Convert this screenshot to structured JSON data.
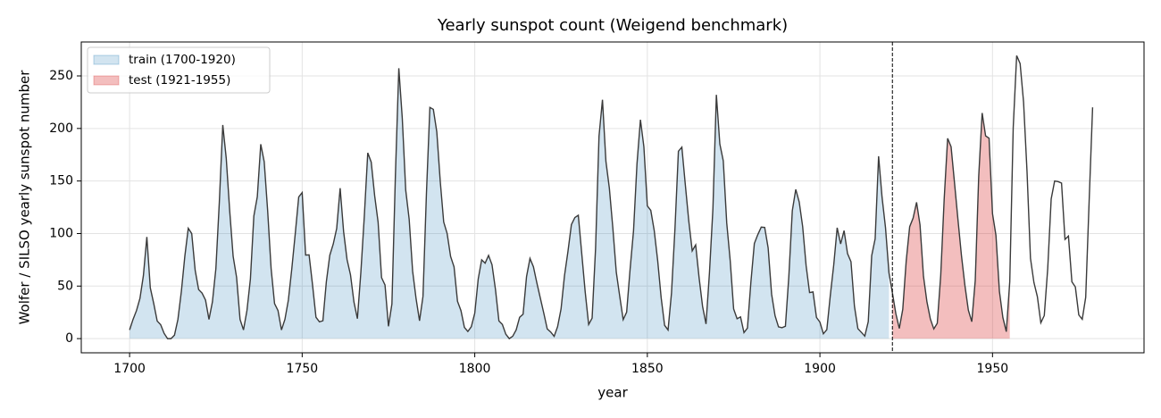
{
  "chart_data": {
    "type": "area-line",
    "title": "Yearly sunspot count (Weigend benchmark)",
    "xlabel": "year",
    "ylabel": "Wolfer / SILSO yearly sunspot number",
    "x": [
      1700,
      1701,
      1702,
      1703,
      1704,
      1705,
      1706,
      1707,
      1708,
      1709,
      1710,
      1711,
      1712,
      1713,
      1714,
      1715,
      1716,
      1717,
      1718,
      1719,
      1720,
      1721,
      1722,
      1723,
      1724,
      1725,
      1726,
      1727,
      1728,
      1729,
      1730,
      1731,
      1732,
      1733,
      1734,
      1735,
      1736,
      1737,
      1738,
      1739,
      1740,
      1741,
      1742,
      1743,
      1744,
      1745,
      1746,
      1747,
      1748,
      1749,
      1750,
      1751,
      1752,
      1753,
      1754,
      1755,
      1756,
      1757,
      1758,
      1759,
      1760,
      1761,
      1762,
      1763,
      1764,
      1765,
      1766,
      1767,
      1768,
      1769,
      1770,
      1771,
      1772,
      1773,
      1774,
      1775,
      1776,
      1777,
      1778,
      1779,
      1780,
      1781,
      1782,
      1783,
      1784,
      1785,
      1786,
      1787,
      1788,
      1789,
      1790,
      1791,
      1792,
      1793,
      1794,
      1795,
      1796,
      1797,
      1798,
      1799,
      1800,
      1801,
      1802,
      1803,
      1804,
      1805,
      1806,
      1807,
      1808,
      1809,
      1810,
      1811,
      1812,
      1813,
      1814,
      1815,
      1816,
      1817,
      1818,
      1819,
      1820,
      1821,
      1822,
      1823,
      1824,
      1825,
      1826,
      1827,
      1828,
      1829,
      1830,
      1831,
      1832,
      1833,
      1834,
      1835,
      1836,
      1837,
      1838,
      1839,
      1840,
      1841,
      1842,
      1843,
      1844,
      1845,
      1846,
      1847,
      1848,
      1849,
      1850,
      1851,
      1852,
      1853,
      1854,
      1855,
      1856,
      1857,
      1858,
      1859,
      1860,
      1861,
      1862,
      1863,
      1864,
      1865,
      1866,
      1867,
      1868,
      1869,
      1870,
      1871,
      1872,
      1873,
      1874,
      1875,
      1876,
      1877,
      1878,
      1879,
      1880,
      1881,
      1882,
      1883,
      1884,
      1885,
      1886,
      1887,
      1888,
      1889,
      1890,
      1891,
      1892,
      1893,
      1894,
      1895,
      1896,
      1897,
      1898,
      1899,
      1900,
      1901,
      1902,
      1903,
      1904,
      1905,
      1906,
      1907,
      1908,
      1909,
      1910,
      1911,
      1912,
      1913,
      1914,
      1915,
      1916,
      1917,
      1918,
      1919,
      1920,
      1921,
      1922,
      1923,
      1924,
      1925,
      1926,
      1927,
      1928,
      1929,
      1930,
      1931,
      1932,
      1933,
      1934,
      1935,
      1936,
      1937,
      1938,
      1939,
      1940,
      1941,
      1942,
      1943,
      1944,
      1945,
      1946,
      1947,
      1948,
      1949,
      1950,
      1951,
      1952,
      1953,
      1954,
      1955,
      1956,
      1957,
      1958,
      1959,
      1960,
      1961,
      1962,
      1963,
      1964,
      1965,
      1966,
      1967,
      1968,
      1969,
      1970,
      1971,
      1972,
      1973,
      1974,
      1975,
      1976,
      1977,
      1978,
      1979
    ],
    "values": [
      8.3,
      18.3,
      26.7,
      38.3,
      60.0,
      96.7,
      48.3,
      33.3,
      16.7,
      13.3,
      5.0,
      0.0,
      0.0,
      3.3,
      18.3,
      45.0,
      78.3,
      105.0,
      100.0,
      65.0,
      46.7,
      43.3,
      36.7,
      18.3,
      35.0,
      66.7,
      130.0,
      203.3,
      171.7,
      121.7,
      78.3,
      58.3,
      18.3,
      8.3,
      26.7,
      56.7,
      116.7,
      135.0,
      185.0,
      168.3,
      121.7,
      66.7,
      33.3,
      26.7,
      8.3,
      18.3,
      36.7,
      66.7,
      100.0,
      134.8,
      139.0,
      79.5,
      79.7,
      51.2,
      20.3,
      16.0,
      17.0,
      54.0,
      79.3,
      90.0,
      104.8,
      143.2,
      102.0,
      75.2,
      60.7,
      34.8,
      19.0,
      63.0,
      116.3,
      176.8,
      168.0,
      136.0,
      110.8,
      58.0,
      51.0,
      11.7,
      33.0,
      154.2,
      257.3,
      209.8,
      141.3,
      113.5,
      64.2,
      38.0,
      17.0,
      40.2,
      138.2,
      220.0,
      218.2,
      196.8,
      149.8,
      111.0,
      100.0,
      78.2,
      68.3,
      35.5,
      26.7,
      10.7,
      6.8,
      11.3,
      24.2,
      56.7,
      75.0,
      71.8,
      79.2,
      70.3,
      46.8,
      16.8,
      13.5,
      4.2,
      0.0,
      2.3,
      8.3,
      20.3,
      23.2,
      59.0,
      76.3,
      68.3,
      52.9,
      38.5,
      24.2,
      9.2,
      6.3,
      2.2,
      11.4,
      28.2,
      59.9,
      83.0,
      108.5,
      115.2,
      117.4,
      80.8,
      44.3,
      13.4,
      19.5,
      85.8,
      192.7,
      227.3,
      168.7,
      143.0,
      105.5,
      63.3,
      40.3,
      18.1,
      25.1,
      65.8,
      102.7,
      166.3,
      208.3,
      182.5,
      126.3,
      122.0,
      102.7,
      74.1,
      39.0,
      12.7,
      8.2,
      43.4,
      104.4,
      178.3,
      182.2,
      146.6,
      112.1,
      83.5,
      89.2,
      57.8,
      30.7,
      13.9,
      62.8,
      123.6,
      232.0,
      185.3,
      169.2,
      110.1,
      74.5,
      28.3,
      18.9,
      20.7,
      5.7,
      10.0,
      53.7,
      90.5,
      99.0,
      106.1,
      105.8,
      86.3,
      42.4,
      21.8,
      11.2,
      10.4,
      11.8,
      59.5,
      121.7,
      142.0,
      130.0,
      106.6,
      69.4,
      43.8,
      44.4,
      20.2,
      15.7,
      4.6,
      8.5,
      40.8,
      70.1,
      105.5,
      90.1,
      102.8,
      80.9,
      73.2,
      30.9,
      9.5,
      6.0,
      2.4,
      16.1,
      79.0,
      95.0,
      173.6,
      134.6,
      105.7,
      62.7,
      43.5,
      23.7,
      9.7,
      27.9,
      74.0,
      106.5,
      114.7,
      129.7,
      108.2,
      59.4,
      35.1,
      18.6,
      9.2,
      14.6,
      60.2,
      132.8,
      190.6,
      182.6,
      148.0,
      113.0,
      79.2,
      50.8,
      27.1,
      16.1,
      55.3,
      154.3,
      214.7,
      193.0,
      190.7,
      118.9,
      98.3,
      45.0,
      20.1,
      6.6,
      54.2,
      200.7,
      269.3,
      261.7,
      225.1,
      159.0,
      76.4,
      53.4,
      39.9,
      15.0,
      22.0,
      66.8,
      132.9,
      150.0,
      149.4,
      148.0,
      94.4,
      97.6,
      54.1,
      49.2,
      22.5,
      18.4,
      39.3,
      131.0,
      220.1
    ],
    "line_color": "#3a3a3a",
    "fills": [
      {
        "name": "train (1700-1920)",
        "color": "#1f77b4",
        "start": 1700,
        "end": 1920
      },
      {
        "name": "test (1921-1955)",
        "color": "#d62728",
        "start": 1921,
        "end": 1955
      }
    ],
    "xlim": [
      1686,
      1993.9
    ],
    "ylim": [
      -13.5,
      282.3
    ],
    "xticks": [
      1700,
      1750,
      1800,
      1850,
      1900,
      1950
    ],
    "yticks": [
      0,
      50,
      100,
      150,
      200,
      250
    ],
    "grid": true,
    "legend": "upper left"
  }
}
